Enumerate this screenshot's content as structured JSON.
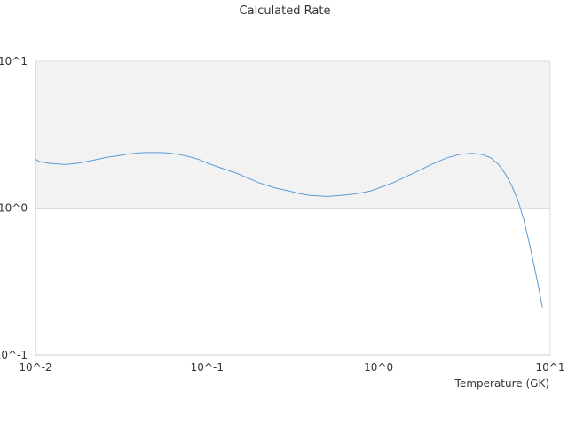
{
  "chart_data": {
    "type": "line",
    "title": "Calculated Rate",
    "xlabel": "Temperature (GK)",
    "ylabel": "",
    "x_scale": "log",
    "y_scale": "log",
    "xlim": [
      0.01,
      10
    ],
    "ylim": [
      0.1,
      10
    ],
    "x_ticks": [
      {
        "value": 0.01,
        "label": "10^-2"
      },
      {
        "value": 0.1,
        "label": "10^-1"
      },
      {
        "value": 1,
        "label": "10^0"
      },
      {
        "value": 10,
        "label": "10^1"
      }
    ],
    "y_ticks": [
      {
        "value": 0.1,
        "label": "10^-1"
      },
      {
        "value": 1,
        "label": "10^0"
      },
      {
        "value": 10,
        "label": "10^1"
      }
    ],
    "grid": true,
    "band": {
      "from": 1,
      "to": 10,
      "color": "#f2f2f2"
    },
    "series": [
      {
        "color": "#5b9bd5",
        "x": [
          0.01,
          0.0105,
          0.012,
          0.015,
          0.018,
          0.022,
          0.026,
          0.03,
          0.035,
          0.04,
          0.045,
          0.05,
          0.055,
          0.06,
          0.07,
          0.08,
          0.09,
          0.1,
          0.12,
          0.15,
          0.18,
          0.2,
          0.25,
          0.3,
          0.35,
          0.4,
          0.5,
          0.6,
          0.7,
          0.8,
          0.9,
          1.0,
          1.2,
          1.5,
          1.8,
          2.0,
          2.5,
          3.0,
          3.5,
          4.0,
          4.5,
          5.0,
          5.5,
          6.0,
          6.5,
          7.0,
          7.5,
          8.0,
          8.5,
          9.0
        ],
        "y": [
          2.15,
          2.08,
          2.02,
          1.98,
          2.03,
          2.13,
          2.22,
          2.27,
          2.34,
          2.38,
          2.39,
          2.39,
          2.39,
          2.37,
          2.31,
          2.23,
          2.14,
          2.03,
          1.88,
          1.72,
          1.57,
          1.49,
          1.37,
          1.31,
          1.25,
          1.22,
          1.2,
          1.22,
          1.24,
          1.27,
          1.31,
          1.37,
          1.48,
          1.67,
          1.85,
          1.97,
          2.2,
          2.33,
          2.36,
          2.32,
          2.2,
          1.98,
          1.7,
          1.4,
          1.12,
          0.84,
          0.6,
          0.42,
          0.3,
          0.21
        ]
      }
    ]
  },
  "colors": {
    "axis": "#cccccc",
    "grid": "#dddddd",
    "text": "#333333"
  }
}
